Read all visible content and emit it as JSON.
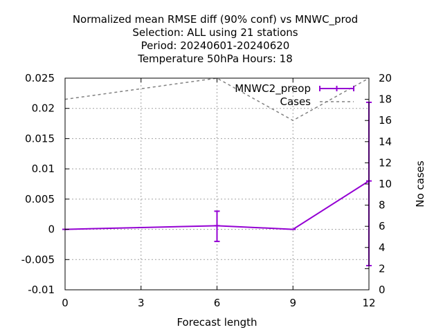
{
  "chart_data": {
    "type": "line",
    "title_lines": [
      "Normalized mean RMSE diff (90% conf) vs MNWC_prod",
      "Selection: ALL using    21 stations",
      "Period: 20240601-20240620",
      "Temperature 50hPa   Hours:  18"
    ],
    "xlabel": "Forecast length",
    "ylabel": "",
    "y2label": "No cases",
    "xlim": [
      0,
      12
    ],
    "ylim": [
      -0.01,
      0.025
    ],
    "y2lim": [
      0,
      20
    ],
    "xticks": [
      "0",
      "3",
      "6",
      "9",
      "12"
    ],
    "yticks": [
      "-0.01",
      "-0.005",
      "0",
      "0.005",
      "0.01",
      "0.015",
      "0.02",
      "0.025"
    ],
    "y2ticks": [
      "0",
      "2",
      "4",
      "6",
      "8",
      "10",
      "12",
      "14",
      "16",
      "18",
      "20"
    ],
    "grid": true,
    "legend_position": "top-right",
    "series": [
      {
        "name": "MNWC2_preop",
        "axis": "y",
        "style": "line-errorbars",
        "color": "#9400d3",
        "x": [
          0,
          3,
          6,
          9,
          12
        ],
        "y": [
          0.0,
          0.0003,
          0.0006,
          0.0,
          0.008
        ],
        "err_low": [
          0.0,
          0.0003,
          -0.002,
          0.0,
          -0.006
        ],
        "err_high": [
          0.0,
          0.0003,
          0.003,
          0.0,
          0.021
        ]
      },
      {
        "name": "Cases",
        "axis": "y2",
        "style": "dashed",
        "color": "#808080",
        "x": [
          0,
          3,
          6,
          9,
          12
        ],
        "y": [
          18,
          19,
          20,
          16,
          20
        ]
      }
    ]
  }
}
